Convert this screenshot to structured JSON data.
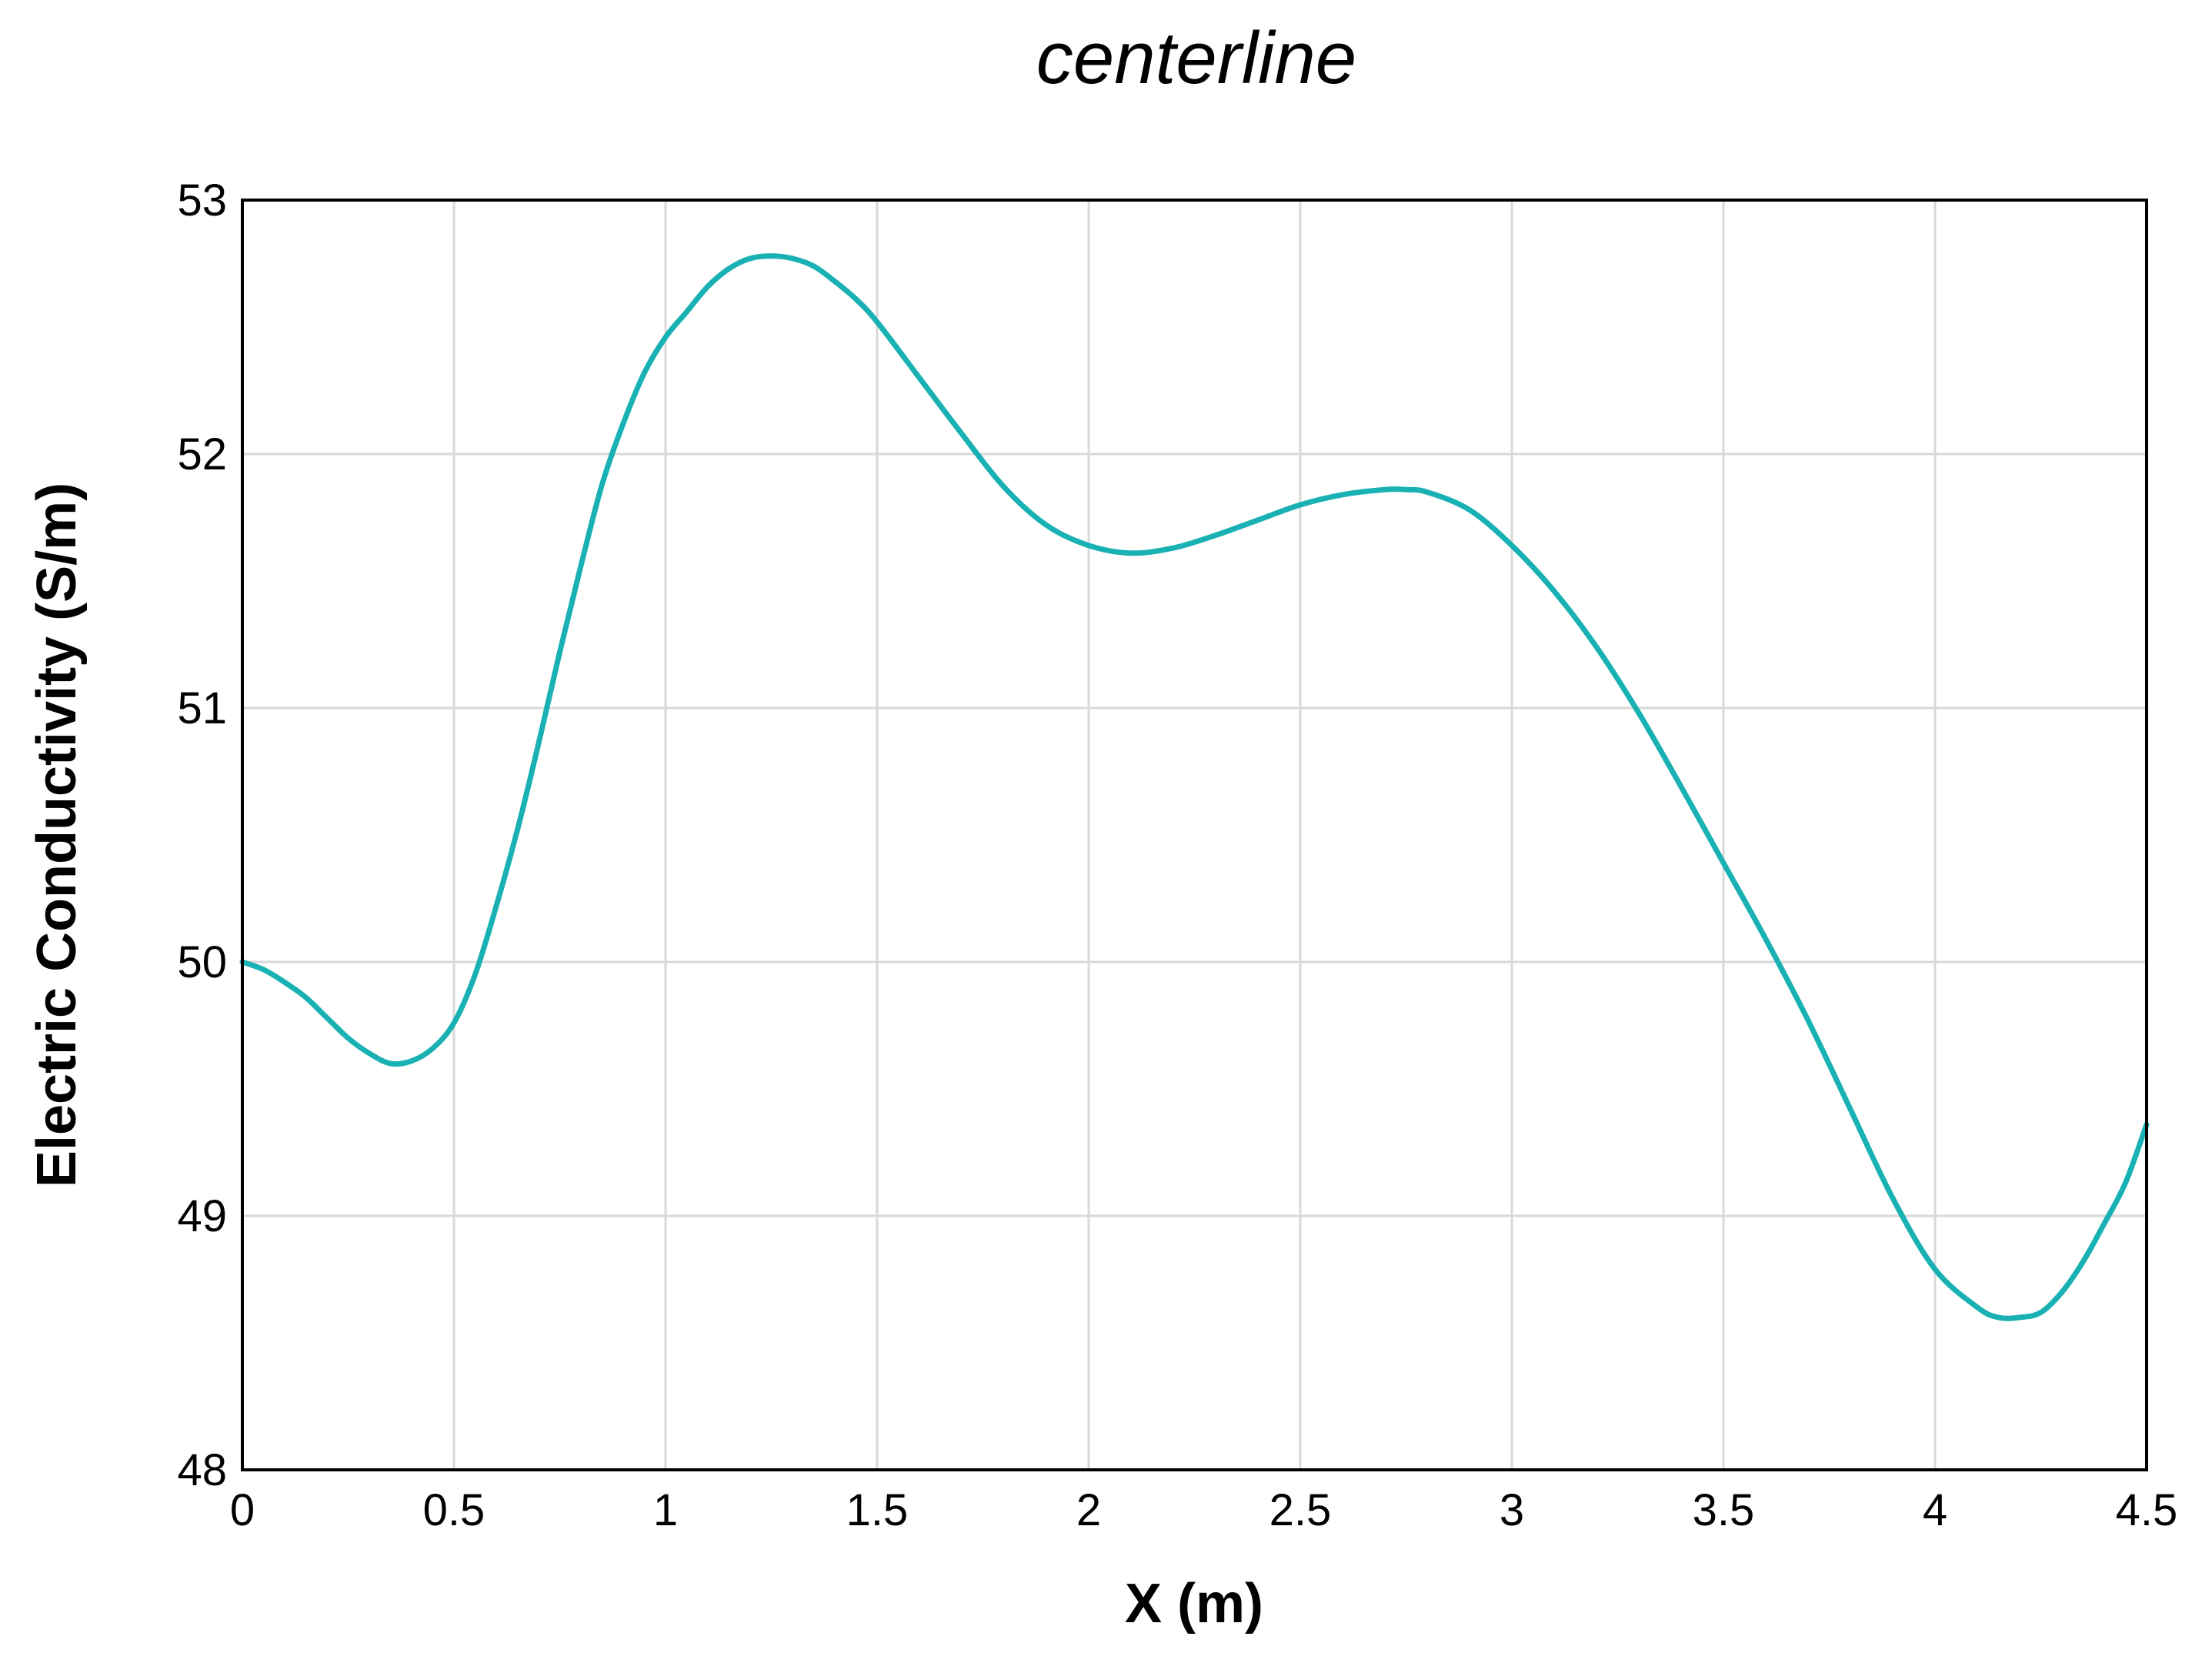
{
  "chart_data": {
    "type": "line",
    "title": "centerline",
    "xlabel": "X (m)",
    "ylabel": "Electric Conductivity (S/m)",
    "xlim": [
      0,
      4.5
    ],
    "ylim": [
      48,
      53
    ],
    "xticks": [
      0,
      0.5,
      1,
      1.5,
      2,
      2.5,
      3,
      3.5,
      4,
      4.5
    ],
    "xtick_labels": [
      "0",
      "0.5",
      "1",
      "1.5",
      "2",
      "2.5",
      "3",
      "3.5",
      "4",
      "4.5"
    ],
    "yticks": [
      48,
      49,
      50,
      51,
      52,
      53
    ],
    "ytick_labels": [
      "48",
      "49",
      "50",
      "51",
      "52",
      "53"
    ],
    "grid": true,
    "series": [
      {
        "color": "#19b1b3",
        "x": [
          0,
          0.05,
          0.1,
          0.15,
          0.2,
          0.25,
          0.3,
          0.35,
          0.4,
          0.45,
          0.5,
          0.55,
          0.6,
          0.65,
          0.7,
          0.75,
          0.8,
          0.85,
          0.9,
          0.95,
          1.0,
          1.05,
          1.1,
          1.15,
          1.2,
          1.25,
          1.3,
          1.35,
          1.4,
          1.45,
          1.5,
          1.6,
          1.7,
          1.8,
          1.9,
          2.0,
          2.1,
          2.2,
          2.3,
          2.4,
          2.5,
          2.6,
          2.7,
          2.75,
          2.8,
          2.9,
          3.0,
          3.1,
          3.2,
          3.3,
          3.4,
          3.5,
          3.6,
          3.7,
          3.8,
          3.9,
          4.0,
          4.1,
          4.15,
          4.2,
          4.25,
          4.3,
          4.35,
          4.4,
          4.45,
          4.5
        ],
        "y": [
          50.0,
          49.97,
          49.92,
          49.86,
          49.78,
          49.7,
          49.64,
          49.6,
          49.61,
          49.66,
          49.76,
          49.95,
          50.22,
          50.52,
          50.86,
          51.22,
          51.56,
          51.88,
          52.12,
          52.32,
          52.46,
          52.56,
          52.66,
          52.73,
          52.77,
          52.78,
          52.77,
          52.74,
          52.68,
          52.61,
          52.52,
          52.3,
          52.08,
          51.87,
          51.72,
          51.64,
          51.61,
          51.63,
          51.68,
          51.74,
          51.8,
          51.84,
          51.86,
          51.86,
          51.85,
          51.78,
          51.64,
          51.46,
          51.24,
          50.98,
          50.69,
          50.39,
          50.09,
          49.77,
          49.42,
          49.07,
          48.79,
          48.64,
          48.6,
          48.6,
          48.62,
          48.7,
          48.82,
          48.97,
          49.13,
          49.36
        ]
      }
    ]
  }
}
